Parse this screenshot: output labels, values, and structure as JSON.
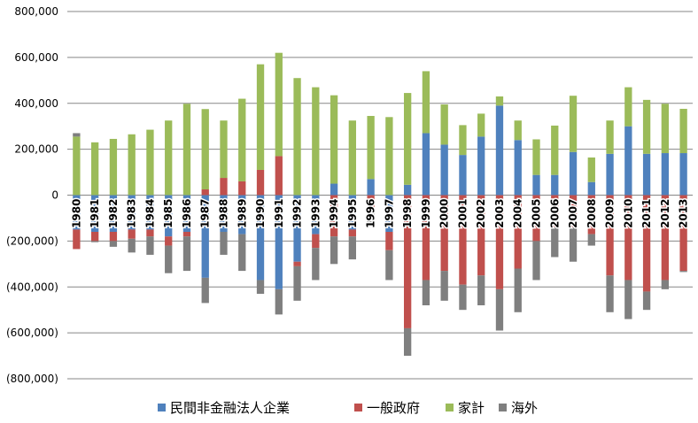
{
  "chart_data": {
    "type": "bar",
    "stacked": true,
    "title": "",
    "xlabel": "",
    "ylabel": "",
    "ylim": [
      -800000,
      800000
    ],
    "yticks": [
      800000,
      600000,
      400000,
      200000,
      0,
      -200000,
      -400000,
      -600000,
      -800000
    ],
    "ytick_labels": [
      "800,000",
      "600,000",
      "400,000",
      "200,000",
      "0",
      "(200,000)",
      "(400,000)",
      "(600,000)",
      "(800,000)"
    ],
    "grid": "horizontal",
    "legend_position": "bottom",
    "categories": [
      "1980",
      "1981",
      "1982",
      "1983",
      "1984",
      "1985",
      "1986",
      "1987",
      "1988",
      "1989",
      "1990",
      "1991",
      "1992",
      "1993",
      "1994",
      "1995",
      "1996",
      "1997",
      "1998",
      "1999",
      "2000",
      "2001",
      "2002",
      "2003",
      "2004",
      "2005",
      "2006",
      "2007",
      "2008",
      "2009",
      "2010",
      "2011",
      "2012",
      "2013"
    ],
    "series": [
      {
        "name": "民間非金融法人企業",
        "color": "#4F81BD",
        "values": [
          -150000,
          -160000,
          -160000,
          -150000,
          -150000,
          -180000,
          -160000,
          -360000,
          -160000,
          -170000,
          -370000,
          -410000,
          -290000,
          -170000,
          50000,
          -150000,
          70000,
          -160000,
          45000,
          270000,
          220000,
          175000,
          255000,
          390000,
          240000,
          88000,
          88000,
          188000,
          57000,
          180000,
          300000,
          180000,
          183000,
          183000
        ]
      },
      {
        "name": "一般政府",
        "color": "#C0504D",
        "values": [
          -85000,
          -40000,
          -40000,
          -40000,
          -30000,
          -40000,
          -20000,
          25000,
          75000,
          60000,
          110000,
          170000,
          -20000,
          -60000,
          -180000,
          -30000,
          -70000,
          -80000,
          -580000,
          -370000,
          -330000,
          -390000,
          -350000,
          -410000,
          -320000,
          -200000,
          -140000,
          -140000,
          -170000,
          -350000,
          -370000,
          -420000,
          -370000,
          -330000
        ]
      },
      {
        "name": "家計",
        "color": "#9BBB59",
        "values": [
          255000,
          230000,
          245000,
          265000,
          285000,
          325000,
          398000,
          350000,
          250000,
          360000,
          460000,
          450000,
          510000,
          470000,
          385000,
          325000,
          275000,
          340000,
          400000,
          270000,
          175000,
          130000,
          100000,
          40000,
          85000,
          155000,
          215000,
          245000,
          107000,
          145000,
          170000,
          235000,
          215000,
          193000
        ]
      },
      {
        "name": "海外",
        "color": "#7F7F7F",
        "values": [
          15000,
          -5000,
          -25000,
          -60000,
          -80000,
          -120000,
          -150000,
          -110000,
          -100000,
          -160000,
          -60000,
          -110000,
          -150000,
          -140000,
          -120000,
          -100000,
          -60000,
          -130000,
          -120000,
          -110000,
          -130000,
          -110000,
          -130000,
          -180000,
          -190000,
          -170000,
          -130000,
          -150000,
          -50000,
          -160000,
          -170000,
          -80000,
          -40000,
          -5000
        ]
      }
    ]
  }
}
